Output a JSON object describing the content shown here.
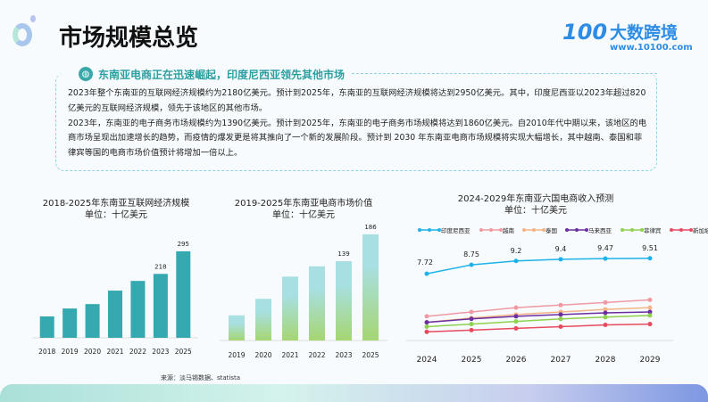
{
  "header": {
    "title": "市场规模总览",
    "logo_name": "大数跨境",
    "logo_mark": "100",
    "logo_url": "www.10100.com"
  },
  "summary": {
    "heading": "东南亚电商正在迅速崛起，印度尼西亚领先其他市场",
    "paragraphs": [
      "2023年整个东南亚的互联网经济规模约为2180亿美元。预计到2025年，东南亚的互联网经济规模将达到2950亿美元。其中，印度尼西亚以2023年超过820亿美元的互联网经济规模，领先于该地区的其他市场。",
      "2023年，东南亚的电子商务市场规模约为1390亿美元。预计到2025年，东南亚的电子商务市场规模将达到1860亿美元。自2010年代中期以来，该地区的电商市场呈现出加速增长的趋势，而疫情的爆发更是将其推向了一个新的发展阶段。预计到 2030 年东南亚电商市场规模将实现大幅增长，其中越南、泰国和菲律宾等国的电商市场价值预计将增加一倍以上。"
    ]
  },
  "source": "来源：淡马锡数据、statista",
  "chart_data": [
    {
      "type": "bar",
      "title": "2018-2025年东南亚互联网经济规模",
      "subtitle": "单位：十亿美元",
      "categories": [
        "2018",
        "2019",
        "2020",
        "2021",
        "2022",
        "2023",
        "2025"
      ],
      "values": [
        73,
        100,
        115,
        161,
        194,
        218,
        295
      ],
      "labels": {
        "5": "218",
        "6": "295"
      },
      "color": "#34a9b0",
      "ylim": [
        0,
        300
      ]
    },
    {
      "type": "bar",
      "title": "2019-2025年东南亚电商市场价值",
      "subtitle": "单位：十亿美元",
      "categories": [
        "2019",
        "2020",
        "2021",
        "2022",
        "2023",
        "2025"
      ],
      "values": [
        44,
        73,
        112,
        130,
        139,
        186
      ],
      "labels": {
        "4": "139",
        "5": "186"
      },
      "colors": [
        "#a8dfe2",
        "#a6d672"
      ],
      "ylim": [
        0,
        190
      ]
    },
    {
      "type": "line",
      "title": "2024-2029年东南亚六国电商收入预测",
      "subtitle": "单位：十亿美元",
      "legend": "top",
      "categories": [
        "2024",
        "2025",
        "2026",
        "2027",
        "2028",
        "2029"
      ],
      "ylim": [
        0,
        10
      ],
      "series": [
        {
          "name": "印度尼西亚",
          "color": "#1fb2ea",
          "values": [
            7.72,
            8.75,
            9.2,
            9.4,
            9.47,
            9.51
          ],
          "show_labels": true
        },
        {
          "name": "越南",
          "color": "#ef9aa2",
          "values": [
            2.8,
            3.3,
            3.8,
            4.1,
            4.4,
            4.7
          ]
        },
        {
          "name": "泰国",
          "color": "#f5b487",
          "values": [
            2.1,
            2.6,
            3.0,
            3.3,
            3.6,
            3.8
          ]
        },
        {
          "name": "马来西亚",
          "color": "#6a2fa0",
          "values": [
            2.1,
            2.5,
            2.8,
            3.0,
            3.2,
            3.3
          ]
        },
        {
          "name": "菲律宾",
          "color": "#8fd14f",
          "values": [
            1.6,
            1.9,
            2.2,
            2.5,
            2.7,
            2.9
          ]
        },
        {
          "name": "新加坡",
          "color": "#e84a5f",
          "values": [
            1.0,
            1.2,
            1.4,
            1.6,
            1.8,
            1.9
          ]
        }
      ]
    }
  ]
}
